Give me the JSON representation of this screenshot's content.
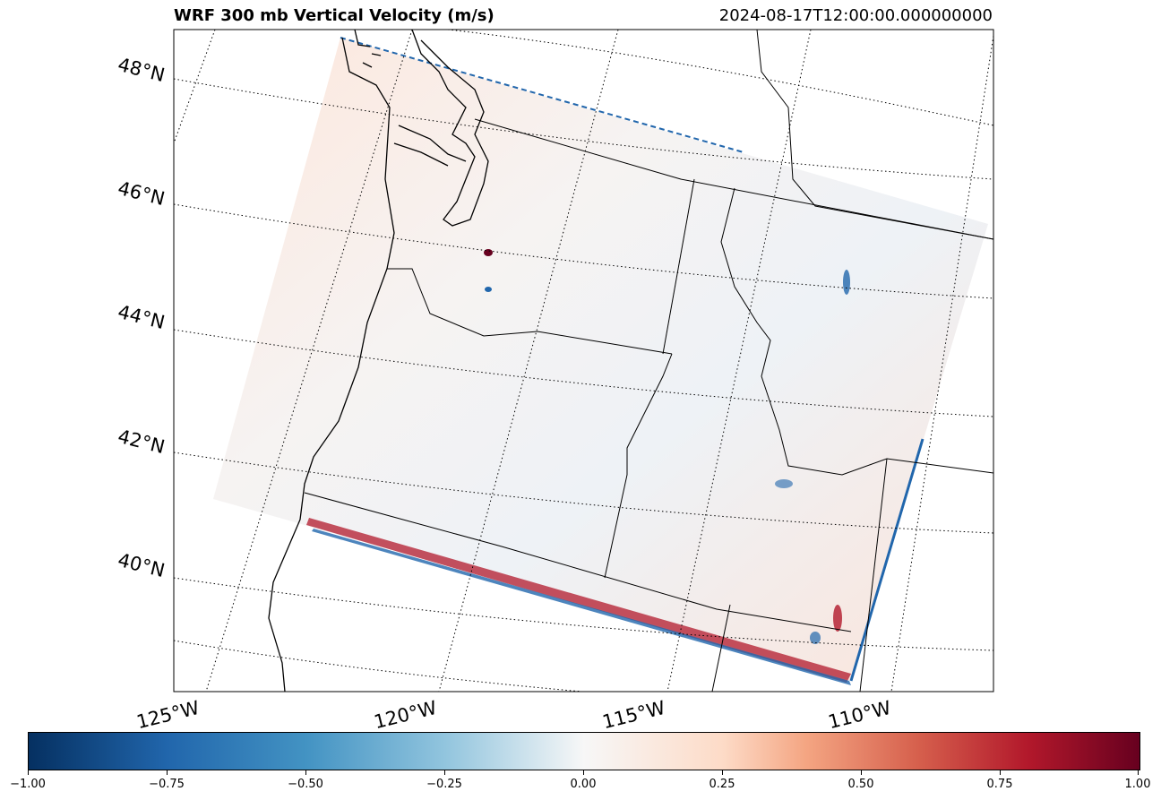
{
  "title": "WRF 300 mb Vertical Velocity (m/s)",
  "valid_time": "2024-08-17T12:00:00.000000000",
  "lat_labels": [
    "48°N",
    "46°N",
    "44°N",
    "42°N",
    "40°N"
  ],
  "lon_labels": [
    "125°W",
    "120°W",
    "115°W",
    "110°W"
  ],
  "colorbar": {
    "colormap": "RdBu_r",
    "min": -1.0,
    "max": 1.0,
    "tick_labels": [
      "−1.00",
      "−0.75",
      "−0.50",
      "−0.25",
      "0.00",
      "0.25",
      "0.50",
      "0.75",
      "1.00"
    ]
  },
  "colors": {
    "negative": "#2166ac",
    "positive": "#b2182b",
    "neutral": "#f7f7f7"
  }
}
